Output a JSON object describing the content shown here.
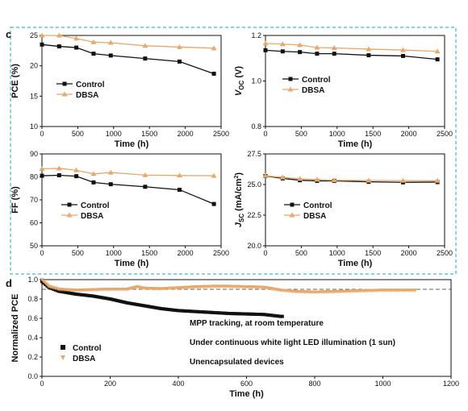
{
  "chart_data": [
    {
      "panel": "c",
      "type": "line",
      "xlabel": "Time (h)",
      "ylabel": "PCE (%)",
      "xlim": [
        0,
        2500
      ],
      "ylim": [
        10,
        25
      ],
      "xticks": [
        0,
        500,
        1000,
        1500,
        2000,
        2500
      ],
      "yticks": [
        10,
        15,
        20,
        25
      ],
      "legend_loc": "lower-left",
      "series": [
        {
          "name": "Control",
          "color": "#111111",
          "marker": "square",
          "x": [
            0,
            240,
            480,
            720,
            960,
            1440,
            1920,
            2400
          ],
          "y": [
            23.5,
            23.2,
            23.0,
            22.0,
            21.7,
            21.2,
            20.7,
            18.7
          ]
        },
        {
          "name": "DBSA",
          "color": "#e8a86a",
          "marker": "triangle",
          "x": [
            0,
            240,
            480,
            720,
            960,
            1440,
            1920,
            2400
          ],
          "y": [
            25.0,
            25.0,
            24.5,
            23.9,
            23.8,
            23.3,
            23.1,
            22.9
          ]
        }
      ]
    },
    {
      "type": "line",
      "xlabel": "Time (h)",
      "ylabel_main": "V",
      "ylabel_sub": "OC",
      "ylabel_unit": " (V)",
      "xlim": [
        0,
        2500
      ],
      "ylim": [
        0.8,
        1.2
      ],
      "xticks": [
        0,
        500,
        1000,
        1500,
        2000,
        2500
      ],
      "yticks": [
        0.8,
        1.0,
        1.2
      ],
      "ytick_labels": [
        "0.8",
        "1.0",
        "1.2"
      ],
      "legend_loc": "lower-left",
      "series": [
        {
          "name": "Control",
          "color": "#111111",
          "marker": "square",
          "x": [
            0,
            240,
            480,
            720,
            960,
            1440,
            1920,
            2400
          ],
          "y": [
            1.135,
            1.13,
            1.127,
            1.12,
            1.12,
            1.113,
            1.11,
            1.095
          ]
        },
        {
          "name": "DBSA",
          "color": "#e8a86a",
          "marker": "triangle",
          "x": [
            0,
            240,
            480,
            720,
            960,
            1440,
            1920,
            2400
          ],
          "y": [
            1.165,
            1.162,
            1.158,
            1.147,
            1.145,
            1.14,
            1.136,
            1.13
          ]
        }
      ]
    },
    {
      "type": "line",
      "xlabel": "Time (h)",
      "ylabel": "FF (%)",
      "xlim": [
        0,
        2500
      ],
      "ylim": [
        50,
        90
      ],
      "xticks": [
        0,
        500,
        1000,
        1500,
        2000,
        2500
      ],
      "yticks": [
        50,
        60,
        70,
        80,
        90
      ],
      "legend_loc": "lower-left",
      "series": [
        {
          "name": "Control",
          "color": "#111111",
          "marker": "square",
          "x": [
            0,
            240,
            480,
            720,
            960,
            1440,
            1920,
            2400
          ],
          "y": [
            80.5,
            80.7,
            80.3,
            77.6,
            76.8,
            75.7,
            74.4,
            68.2
          ]
        },
        {
          "name": "DBSA",
          "color": "#e8a86a",
          "marker": "triangle",
          "x": [
            0,
            240,
            480,
            720,
            960,
            1440,
            1920,
            2400
          ],
          "y": [
            83.5,
            83.7,
            82.9,
            81.3,
            81.9,
            80.8,
            80.6,
            80.5
          ]
        }
      ]
    },
    {
      "type": "line",
      "xlabel": "Time (h)",
      "ylabel_main": "J",
      "ylabel_sub": "SC",
      "ylabel_unit": " (mA/cm",
      "ylabel_sup": "2",
      "ylabel_close": ")",
      "xlim": [
        0,
        2500
      ],
      "ylim": [
        20.0,
        27.5
      ],
      "xticks": [
        0,
        500,
        1000,
        1500,
        2000,
        2500
      ],
      "yticks": [
        20.0,
        22.5,
        25.0,
        27.5
      ],
      "ytick_labels": [
        "20.0",
        "22.5",
        "25.0",
        "27.5"
      ],
      "legend_loc": "lower-left",
      "series": [
        {
          "name": "Control",
          "color": "#111111",
          "marker": "square",
          "x": [
            0,
            240,
            480,
            720,
            960,
            1440,
            1920,
            2400
          ],
          "y": [
            25.7,
            25.5,
            25.35,
            25.3,
            25.3,
            25.22,
            25.18,
            25.2
          ]
        },
        {
          "name": "DBSA",
          "color": "#e8a86a",
          "marker": "triangle",
          "x": [
            0,
            240,
            480,
            720,
            960,
            1440,
            1920,
            2400
          ],
          "y": [
            25.72,
            25.58,
            25.47,
            25.4,
            25.35,
            25.33,
            25.32,
            25.31
          ]
        }
      ]
    },
    {
      "panel": "d",
      "type": "scatter",
      "xlabel": "Time (h)",
      "ylabel": "Normalized PCE",
      "xlim": [
        0,
        1200
      ],
      "ylim": [
        0.0,
        1.0
      ],
      "xticks": [
        0,
        200,
        400,
        600,
        800,
        1000,
        1200
      ],
      "yticks": [
        0.0,
        0.2,
        0.4,
        0.6,
        0.8,
        1.0
      ],
      "ytick_labels": [
        "0.0",
        "0.2",
        "0.4",
        "0.6",
        "0.8",
        "1.0"
      ],
      "reference_line_y": 0.9,
      "legend_loc": "lower-left",
      "annotations": [
        "MPP tracking, at room temperature",
        "Under continuous white light LED illumination (1 sun)",
        "Unencapsulated devices"
      ],
      "series": [
        {
          "name": "Control",
          "color": "#111111",
          "marker": "square",
          "x": [
            0,
            20,
            50,
            100,
            150,
            200,
            250,
            300,
            350,
            400,
            450,
            500,
            550,
            600,
            650,
            700,
            710
          ],
          "y": [
            0.98,
            0.92,
            0.88,
            0.85,
            0.83,
            0.8,
            0.76,
            0.73,
            0.7,
            0.68,
            0.67,
            0.66,
            0.65,
            0.645,
            0.64,
            0.62,
            0.62
          ]
        },
        {
          "name": "DBSA",
          "color": "#e8a86a",
          "marker": "triangle",
          "x": [
            0,
            20,
            50,
            100,
            150,
            200,
            250,
            280,
            300,
            350,
            400,
            450,
            500,
            550,
            600,
            650,
            700,
            750,
            800,
            850,
            900,
            950,
            1000,
            1050,
            1100
          ],
          "y": [
            1.0,
            0.93,
            0.9,
            0.89,
            0.895,
            0.9,
            0.9,
            0.925,
            0.91,
            0.905,
            0.915,
            0.925,
            0.93,
            0.93,
            0.925,
            0.92,
            0.89,
            0.875,
            0.87,
            0.875,
            0.88,
            0.885,
            0.89,
            0.89,
            0.89
          ]
        }
      ]
    }
  ],
  "labels": {
    "panel_c": "c",
    "panel_d": "d"
  }
}
